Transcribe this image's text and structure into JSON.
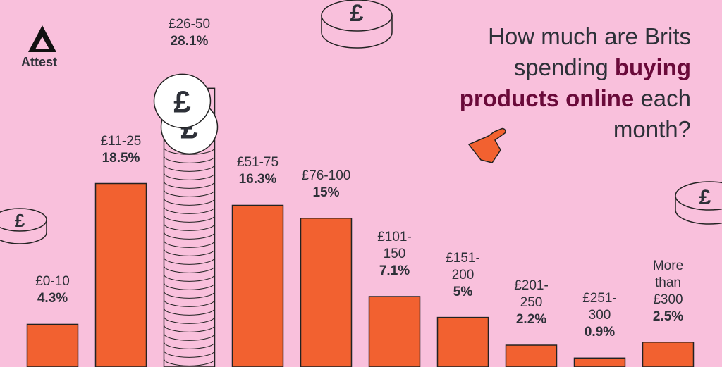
{
  "brand": "Attest",
  "chart_data": {
    "type": "bar",
    "title": "How much are Brits spending",
    "title_highlight": "buying products online",
    "title_end": "each month?",
    "categories": [
      "£0-10",
      "£11-25",
      "£26-50",
      "£51-75",
      "£76-100",
      "£101-150",
      "£151-200",
      "£201-250",
      "£251-300",
      "More than £300"
    ],
    "values": [
      4.3,
      18.5,
      28.1,
      16.3,
      15,
      7.1,
      5,
      2.2,
      0.9,
      2.5
    ],
    "value_labels": [
      "4.3%",
      "18.5%",
      "28.1%",
      "16.3%",
      "15%",
      "7.1%",
      "5%",
      "2.2%",
      "0.9%",
      "2.5%"
    ],
    "color": "#f26130",
    "ylim": [
      0,
      37
    ]
  }
}
